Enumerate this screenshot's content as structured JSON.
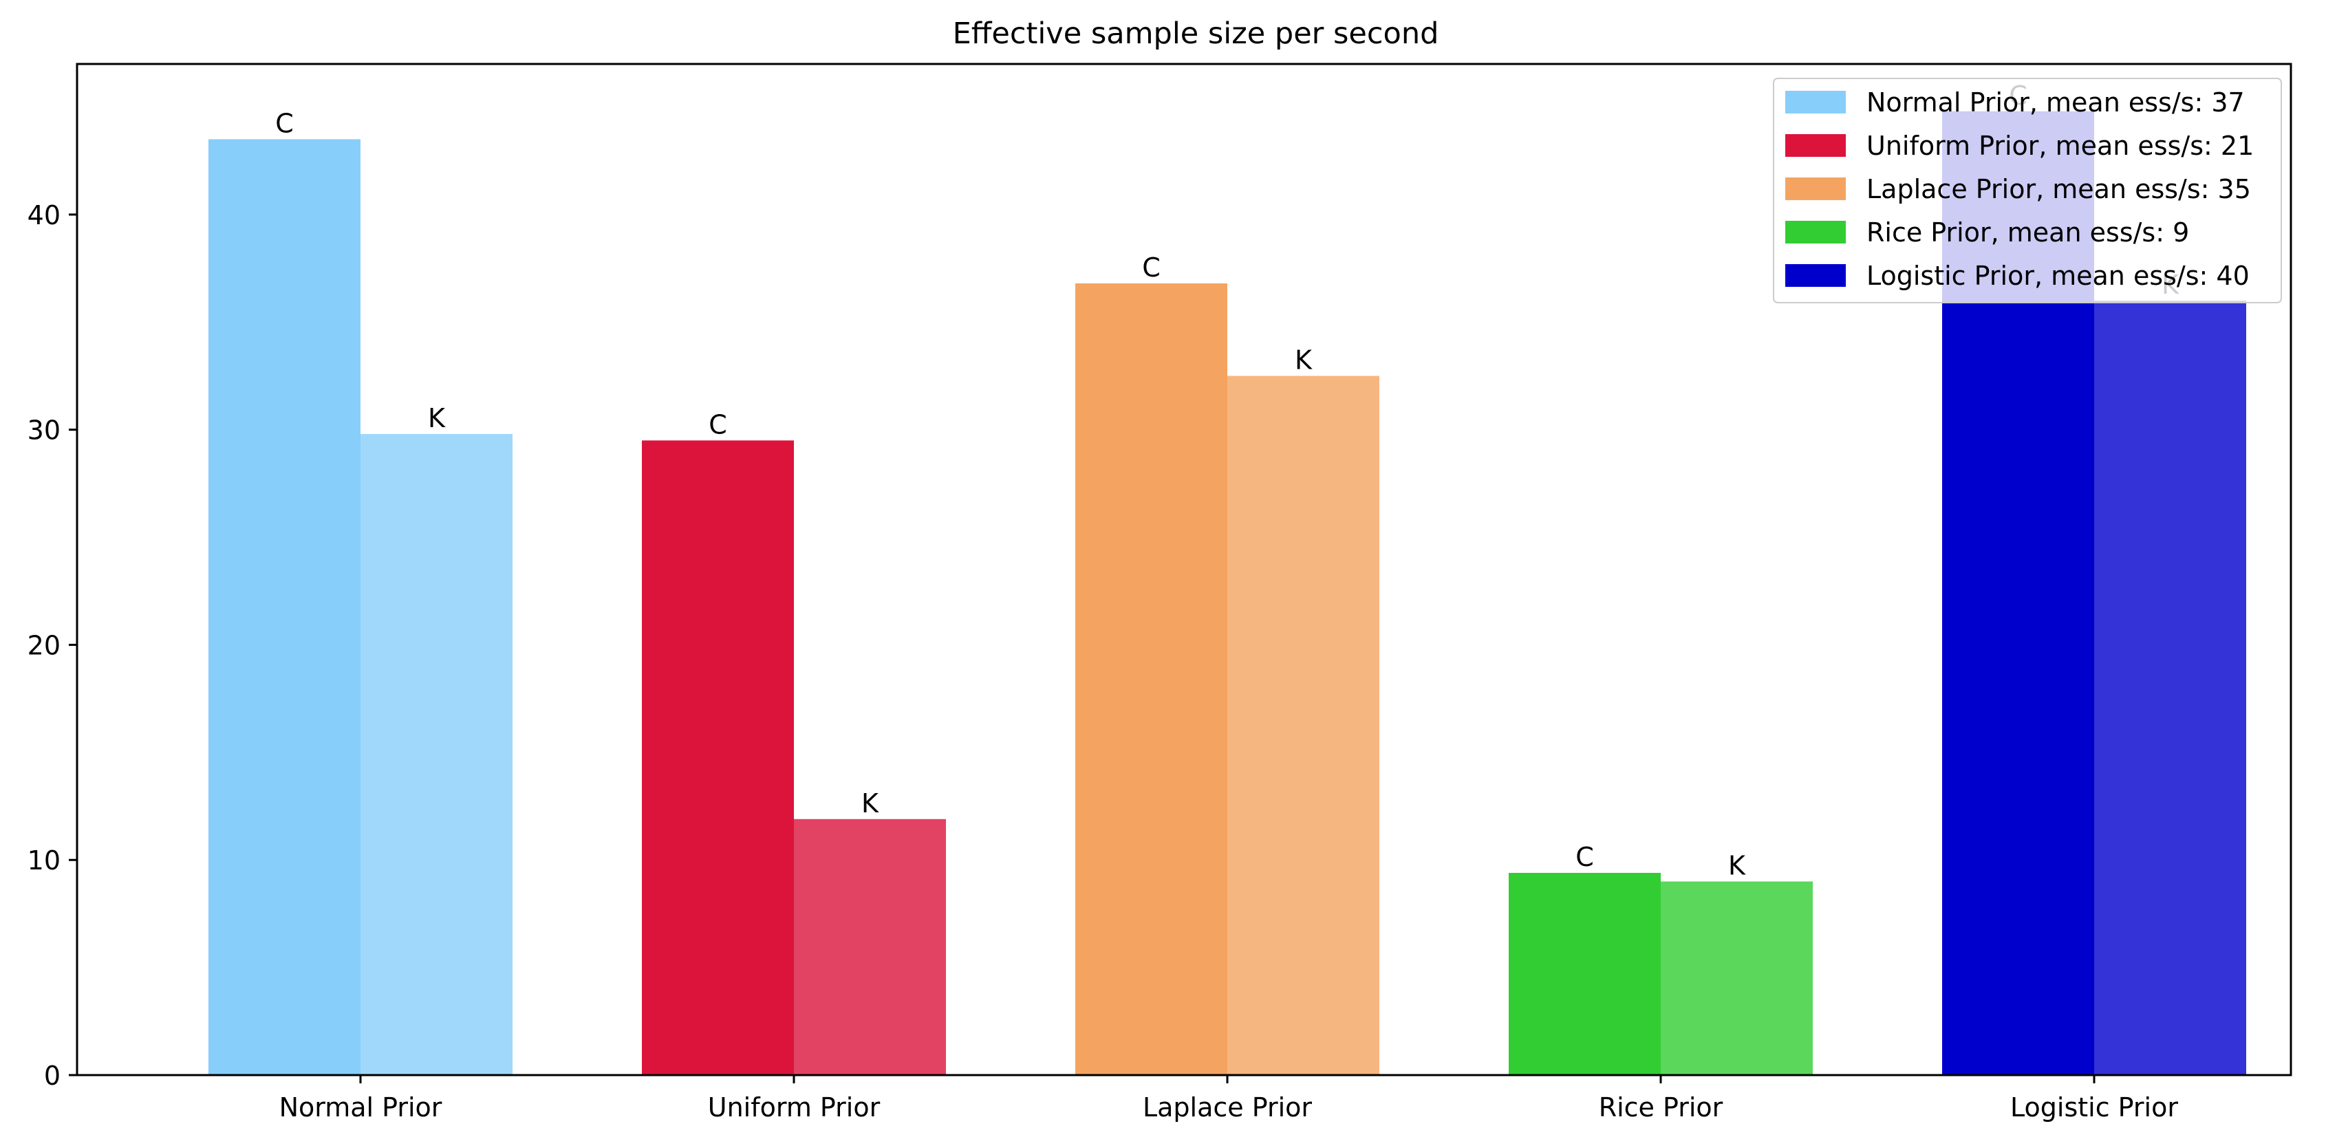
{
  "chart_data": {
    "type": "bar",
    "title": "Effective sample size per second",
    "xlabel": "",
    "ylabel": "",
    "categories": [
      "Normal Prior",
      "Uniform Prior",
      "Laplace Prior",
      "Rice Prior",
      "Logistic Prior"
    ],
    "ylim": [
      0,
      47
    ],
    "yticks": [
      0,
      10,
      20,
      30,
      40
    ],
    "grid": false,
    "legend_position": "top-right",
    "series": [
      {
        "name": "C",
        "bar_label": "C",
        "values": [
          43.5,
          29.5,
          36.8,
          9.4,
          44.8
        ],
        "colors": [
          "#87CEFA",
          "#DC143C",
          "#F4A460",
          "#32CD32",
          "#0000CD"
        ],
        "opacity": 1.0
      },
      {
        "name": "K",
        "bar_label": "K",
        "values": [
          29.8,
          11.9,
          32.5,
          9.0,
          36.0
        ],
        "colors": [
          "#87CEFA",
          "#DC143C",
          "#F4A460",
          "#32CD32",
          "#0000CD"
        ],
        "opacity": 0.8
      }
    ],
    "legend": [
      {
        "label": "Normal Prior, mean ess/s: 37",
        "color": "#87CEFA"
      },
      {
        "label": "Uniform Prior, mean ess/s: 21",
        "color": "#DC143C"
      },
      {
        "label": "Laplace Prior, mean ess/s: 35",
        "color": "#F4A460"
      },
      {
        "label": "Rice Prior, mean ess/s: 9",
        "color": "#32CD32"
      },
      {
        "label": "Logistic Prior, mean ess/s: 40",
        "color": "#0000CD"
      }
    ]
  }
}
